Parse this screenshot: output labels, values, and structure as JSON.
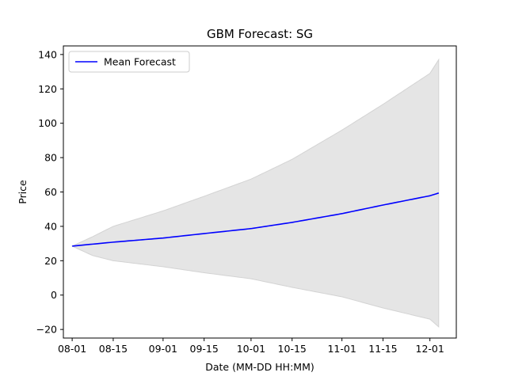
{
  "chart_data": {
    "type": "line",
    "title": "GBM Forecast: SG",
    "xlabel": "Date (MM-DD HH:MM)",
    "ylabel": "Price",
    "x_start": "2024-08-01",
    "x_end": "2024-12-04",
    "xlim": [
      "2024-07-29",
      "2024-12-10"
    ],
    "ylim": [
      -25,
      145
    ],
    "x_ticks": [
      "08-01",
      "08-15",
      "09-01",
      "09-15",
      "10-01",
      "10-15",
      "11-01",
      "11-15",
      "12-01"
    ],
    "y_ticks": [
      -20,
      0,
      20,
      40,
      60,
      80,
      100,
      120,
      140
    ],
    "grid": false,
    "legend_position": "upper-left",
    "colors": {
      "mean": "#0000ff",
      "band": "#d3d3d3"
    },
    "series": [
      {
        "name": "Mean Forecast",
        "kind": "line",
        "points": [
          [
            "2024-08-01",
            28.5
          ],
          [
            "2024-08-15",
            30.8
          ],
          [
            "2024-09-01",
            33.2
          ],
          [
            "2024-09-15",
            35.8
          ],
          [
            "2024-10-01",
            38.7
          ],
          [
            "2024-10-15",
            42.3
          ],
          [
            "2024-11-01",
            47.4
          ],
          [
            "2024-11-15",
            52.4
          ],
          [
            "2024-12-01",
            57.8
          ],
          [
            "2024-12-04",
            59.4
          ]
        ]
      }
    ],
    "band": {
      "upper": [
        [
          "2024-08-01",
          28.5
        ],
        [
          "2024-08-08",
          34.0
        ],
        [
          "2024-08-15",
          40.0
        ],
        [
          "2024-09-01",
          49.0
        ],
        [
          "2024-09-15",
          57.5
        ],
        [
          "2024-10-01",
          67.5
        ],
        [
          "2024-10-15",
          79.0
        ],
        [
          "2024-11-01",
          96.0
        ],
        [
          "2024-11-15",
          111.0
        ],
        [
          "2024-12-01",
          129.0
        ],
        [
          "2024-12-04",
          137.0
        ]
      ],
      "lower": [
        [
          "2024-08-01",
          28.5
        ],
        [
          "2024-08-08",
          23.0
        ],
        [
          "2024-08-15",
          20.0
        ],
        [
          "2024-09-01",
          16.5
        ],
        [
          "2024-09-15",
          13.0
        ],
        [
          "2024-10-01",
          9.5
        ],
        [
          "2024-10-15",
          4.5
        ],
        [
          "2024-11-01",
          -1.0
        ],
        [
          "2024-11-15",
          -7.5
        ],
        [
          "2024-12-01",
          -14.0
        ],
        [
          "2024-12-04",
          -18.5
        ]
      ]
    }
  }
}
